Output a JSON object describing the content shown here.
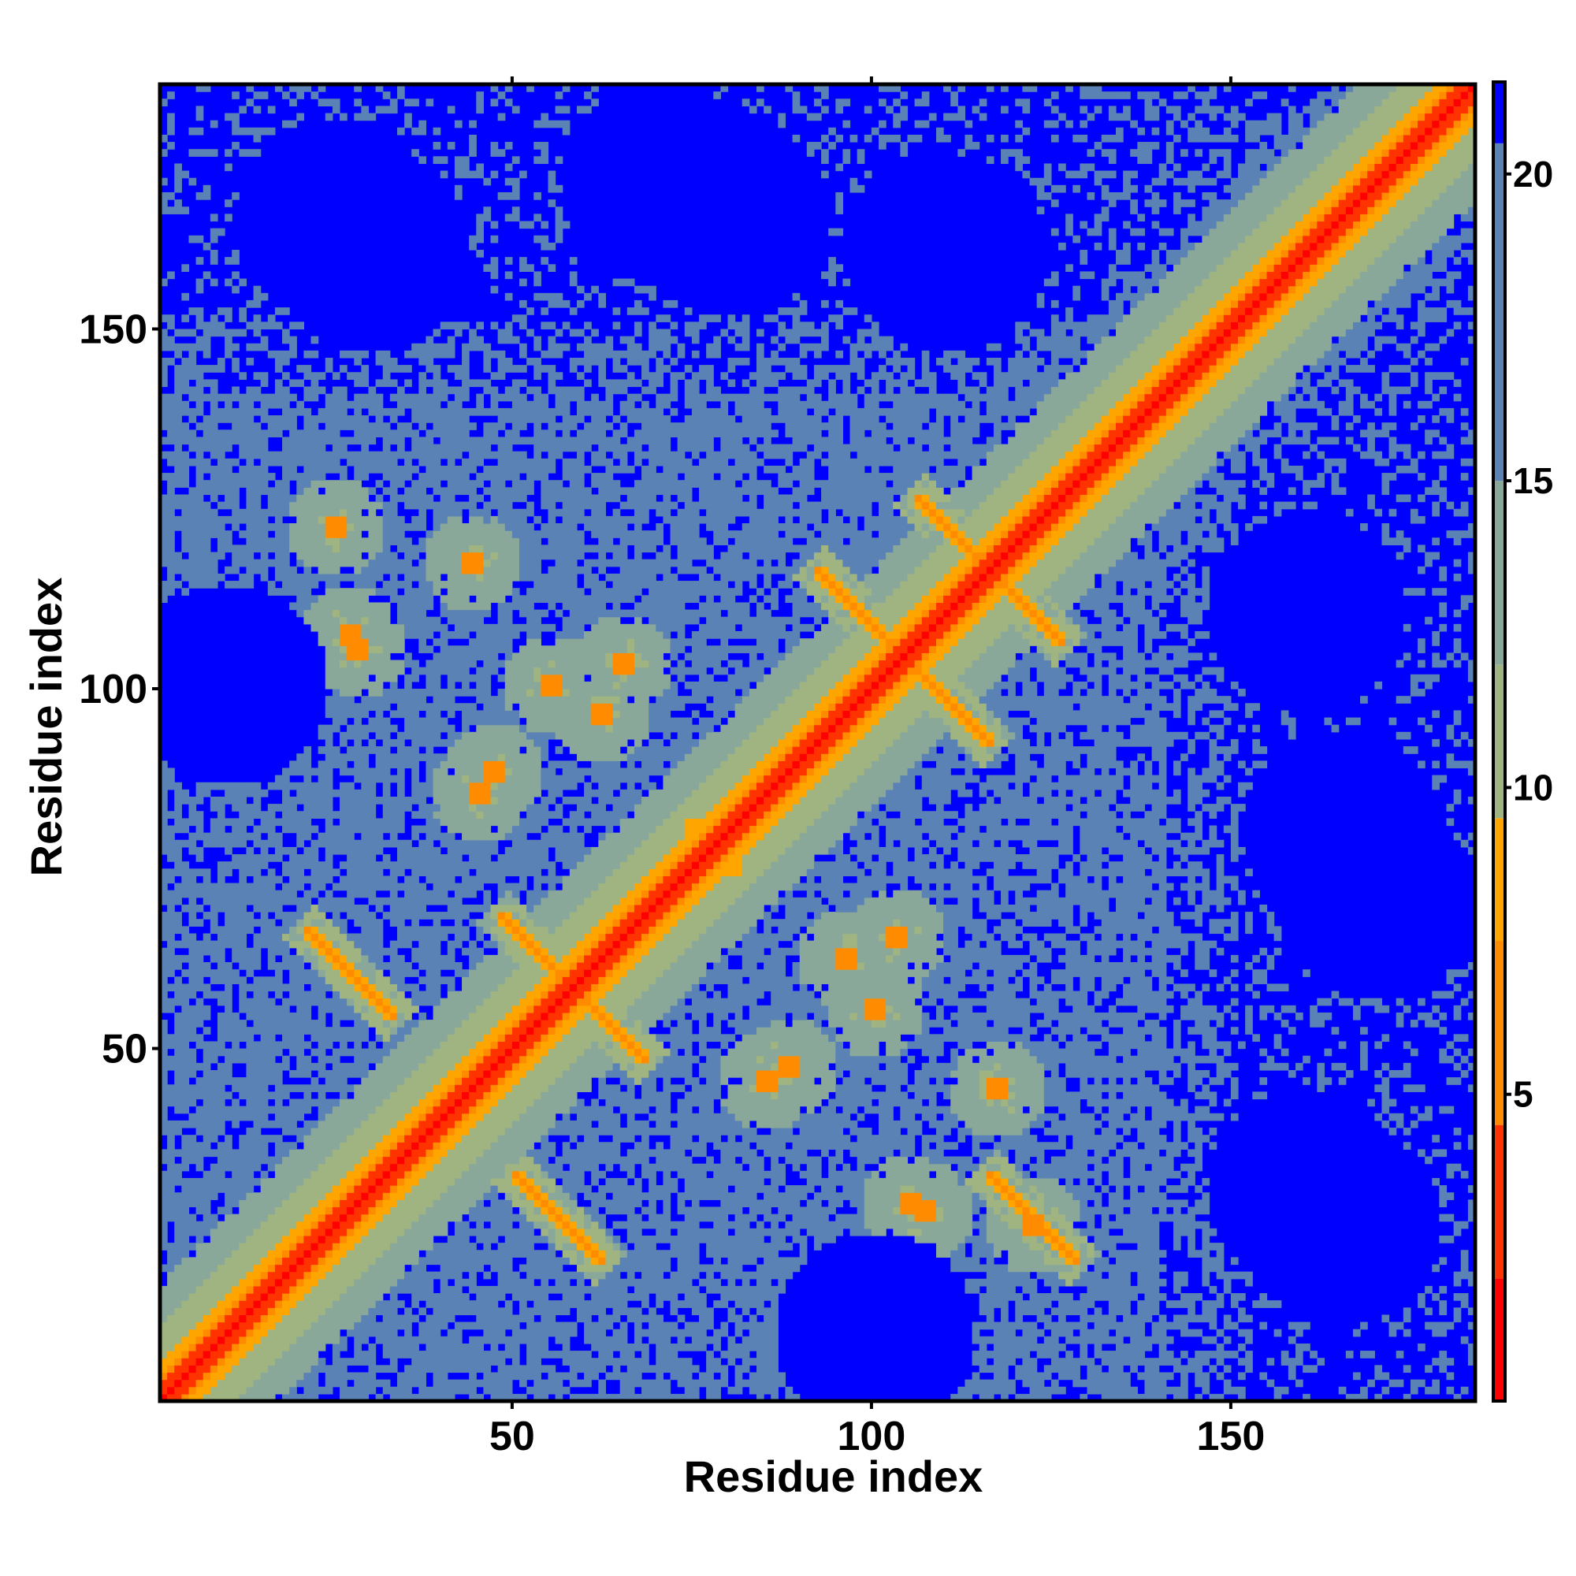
{
  "chart_data": {
    "type": "heatmap",
    "title": "",
    "xlabel": "Residue index",
    "ylabel": "Residue index",
    "n_residues": 183,
    "xlim": [
      1,
      183
    ],
    "ylim": [
      1,
      183
    ],
    "x_ticks": [
      50,
      100,
      150
    ],
    "y_ticks": [
      50,
      100,
      150
    ],
    "colorbar": {
      "ticks": [
        5,
        10,
        15,
        20
      ],
      "range": [
        0,
        21.5
      ],
      "colors": [
        {
          "min": 0,
          "max": 2,
          "color": "#ff0000"
        },
        {
          "min": 2,
          "max": 4.5,
          "color": "#ff3300"
        },
        {
          "min": 4.5,
          "max": 7.5,
          "color": "#ff8c00"
        },
        {
          "min": 7.5,
          "max": 9.5,
          "color": "#ffa500"
        },
        {
          "min": 9.5,
          "max": 12,
          "color": "#a0b482"
        },
        {
          "min": 12,
          "max": 15,
          "color": "#8aa89a"
        },
        {
          "min": 15,
          "max": 20.5,
          "color": "#5a82b4"
        },
        {
          "min": 20.5,
          "max": 21.5,
          "color": "#0000ff"
        }
      ]
    },
    "diagonal_distance": 0,
    "cross_contacts": [
      {
        "i": 58,
        "j": 58,
        "length": 10,
        "direction": "anti"
      },
      {
        "i": 104,
        "j": 104,
        "length": 12,
        "direction": "anti"
      },
      {
        "i": 116,
        "j": 116,
        "length": 10,
        "direction": "anti"
      },
      {
        "i": 27,
        "j": 60,
        "length": 6,
        "direction": "anti"
      },
      {
        "i": 56,
        "j": 26,
        "length": 6,
        "direction": "anti"
      },
      {
        "i": 122,
        "j": 26,
        "length": 6,
        "direction": "anti"
      }
    ],
    "contact_spots": [
      {
        "i": 25,
        "j": 122,
        "d": 6
      },
      {
        "i": 27,
        "j": 107,
        "d": 6
      },
      {
        "i": 47,
        "j": 88,
        "d": 7
      },
      {
        "i": 55,
        "j": 100,
        "d": 7
      },
      {
        "i": 65,
        "j": 103,
        "d": 7
      },
      {
        "i": 85,
        "j": 45,
        "d": 7
      },
      {
        "i": 105,
        "j": 28,
        "d": 7
      },
      {
        "i": 117,
        "j": 44,
        "d": 6
      },
      {
        "i": 96,
        "j": 62,
        "d": 7
      },
      {
        "i": 75,
        "j": 80,
        "d": 8
      }
    ],
    "far_regions": [
      {
        "i": 25,
        "j": 165
      },
      {
        "i": 70,
        "j": 170
      },
      {
        "i": 160,
        "j": 30
      },
      {
        "i": 165,
        "j": 80
      },
      {
        "i": 160,
        "j": 110
      },
      {
        "i": 10,
        "j": 100
      },
      {
        "i": 100,
        "j": 10
      }
    ]
  }
}
